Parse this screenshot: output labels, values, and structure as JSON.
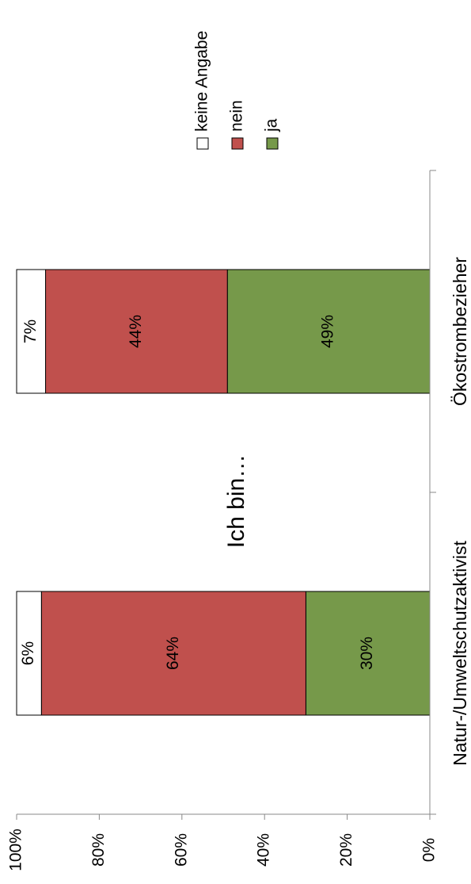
{
  "chart_data": {
    "type": "bar",
    "stacked": true,
    "orientation": "rotated-90-clockwise",
    "title": "Ich bin…",
    "categories": [
      "Natur-/Umweltschutzaktivist",
      "Ökostrombezieher"
    ],
    "series": [
      {
        "name": "ja",
        "values": [
          30,
          49
        ],
        "labels": [
          "30%",
          "49%"
        ],
        "color": "#76994a"
      },
      {
        "name": "nein",
        "values": [
          64,
          44
        ],
        "labels": [
          "64%",
          "44%"
        ],
        "color": "#c0504d"
      },
      {
        "name": "keine Angabe",
        "values": [
          6,
          7
        ],
        "labels": [
          "6%",
          "7%"
        ],
        "color": "#ffffff"
      }
    ],
    "ylim": [
      0,
      100
    ],
    "y_ticks": [
      "0%",
      "20%",
      "40%",
      "60%",
      "80%",
      "100%"
    ],
    "legend_position": "top-right",
    "grid": false
  }
}
